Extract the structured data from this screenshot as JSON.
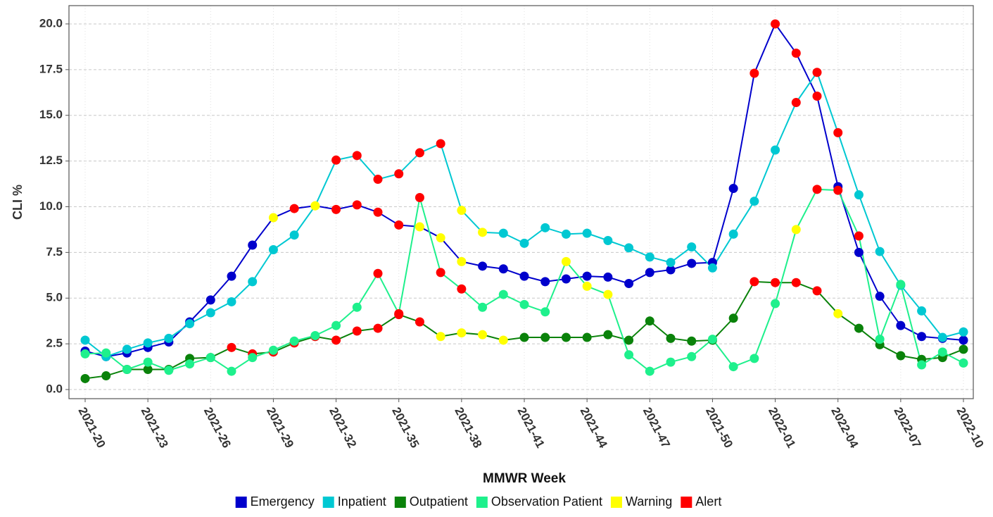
{
  "chart_data": {
    "type": "line",
    "x_label": "MMWR Week",
    "y_label": "CLI %",
    "categories": [
      "2021-20",
      null,
      null,
      "2021-23",
      null,
      null,
      "2021-26",
      null,
      null,
      "2021-29",
      null,
      null,
      "2021-32",
      null,
      null,
      "2021-35",
      null,
      null,
      "2021-38",
      null,
      null,
      "2021-41",
      null,
      null,
      "2021-44",
      null,
      null,
      "2021-47",
      null,
      null,
      "2021-50",
      null,
      null,
      "2022-01",
      null,
      null,
      "2022-04",
      null,
      null,
      "2022-07",
      null,
      null,
      "2022-10"
    ],
    "ylim": [
      -0.5,
      21
    ],
    "yticks": [
      {
        "value": 0,
        "label": "0.0"
      },
      2.5,
      {
        "value": 5,
        "label": "5.0"
      },
      7.5,
      {
        "value": 10,
        "label": "10.0"
      },
      12.5,
      {
        "value": 15,
        "label": "15.0"
      },
      17.5,
      {
        "value": 20,
        "label": "20.0"
      }
    ],
    "grid": true,
    "series": [
      {
        "name": "Emergency",
        "color": "#0000cc",
        "values": [
          2.1,
          1.8,
          2.0,
          2.3,
          2.6,
          3.7,
          4.9,
          6.2,
          7.9,
          9.4,
          9.9,
          10.05,
          9.85,
          10.1,
          9.7,
          9.0,
          8.9,
          8.3,
          7.0,
          6.75,
          6.6,
          6.2,
          5.9,
          6.05,
          6.2,
          6.15,
          5.8,
          6.4,
          6.55,
          6.9,
          6.95,
          11.0,
          17.3,
          20.0,
          18.4,
          16.05,
          11.1,
          7.5,
          5.1,
          3.5,
          2.9,
          2.8,
          2.7
        ],
        "marker_colors": [
          null,
          null,
          null,
          null,
          null,
          null,
          null,
          null,
          null,
          "#ffff00",
          "#ff0000",
          "#ffff00",
          "#ff0000",
          "#ff0000",
          "#ff0000",
          "#ff0000",
          "#ffff00",
          "#ffff00",
          "#ffff00",
          null,
          null,
          null,
          null,
          null,
          null,
          null,
          null,
          null,
          null,
          null,
          null,
          null,
          "#ff0000",
          "#ff0000",
          "#ff0000",
          "#ff0000",
          null,
          null,
          null,
          null,
          null,
          null,
          null
        ]
      },
      {
        "name": "Inpatient",
        "color": "#00c8d2",
        "values": [
          2.7,
          1.8,
          2.2,
          2.55,
          2.8,
          3.6,
          4.2,
          4.8,
          5.9,
          7.65,
          8.45,
          10.05,
          12.55,
          12.8,
          11.5,
          11.8,
          12.95,
          13.45,
          9.8,
          8.6,
          8.55,
          8.0,
          8.85,
          8.5,
          8.55,
          8.15,
          7.75,
          7.25,
          6.95,
          7.8,
          6.65,
          8.5,
          10.3,
          13.1,
          15.7,
          17.35,
          14.05,
          10.65,
          7.55,
          5.7,
          4.3,
          2.85,
          3.15
        ],
        "marker_colors": [
          null,
          null,
          null,
          null,
          null,
          null,
          null,
          null,
          null,
          null,
          null,
          "#ffff00",
          "#ff0000",
          "#ff0000",
          "#ff0000",
          "#ff0000",
          "#ff0000",
          "#ff0000",
          "#ffff00",
          "#ffff00",
          null,
          null,
          null,
          null,
          null,
          null,
          null,
          null,
          null,
          null,
          null,
          null,
          null,
          null,
          "#ff0000",
          "#ff0000",
          "#ff0000",
          null,
          null,
          null,
          null,
          null,
          null
        ]
      },
      {
        "name": "Outpatient",
        "color": "#0a820a",
        "values": [
          0.6,
          0.75,
          1.1,
          1.1,
          1.1,
          1.7,
          1.75,
          2.3,
          1.95,
          2.05,
          2.55,
          2.9,
          2.7,
          3.2,
          3.35,
          4.1,
          3.7,
          2.9,
          3.1,
          3.0,
          2.7,
          2.85,
          2.85,
          2.85,
          2.85,
          3.0,
          2.7,
          3.75,
          2.8,
          2.65,
          2.7,
          3.9,
          5.9,
          5.85,
          5.85,
          5.4,
          4.15,
          3.35,
          2.45,
          1.85,
          1.65,
          1.75,
          2.2
        ],
        "marker_colors": [
          null,
          null,
          null,
          null,
          null,
          null,
          null,
          "#ff0000",
          "#ff0000",
          "#ff0000",
          "#ff0000",
          "#ff0000",
          "#ff0000",
          "#ff0000",
          "#ff0000",
          "#ff0000",
          "#ff0000",
          "#ffff00",
          "#ffff00",
          "#ffff00",
          "#ffff00",
          null,
          null,
          null,
          null,
          null,
          null,
          null,
          null,
          null,
          null,
          null,
          "#ff0000",
          "#ff0000",
          "#ff0000",
          "#ff0000",
          "#ffff00",
          null,
          null,
          null,
          null,
          null,
          null
        ]
      },
      {
        "name": "Observation Patient",
        "color": "#1ef08c",
        "values": [
          1.95,
          2.0,
          1.1,
          1.5,
          1.05,
          1.4,
          1.75,
          1.0,
          1.75,
          2.15,
          2.65,
          2.95,
          3.5,
          4.5,
          6.35,
          4.15,
          10.5,
          6.4,
          5.5,
          4.5,
          5.2,
          4.65,
          4.25,
          7.0,
          5.65,
          5.2,
          1.9,
          1.0,
          1.5,
          1.8,
          2.75,
          1.25,
          1.7,
          4.7,
          8.75,
          10.95,
          10.9,
          8.4,
          2.75,
          5.75,
          1.35,
          2.05,
          1.45
        ],
        "marker_colors": [
          null,
          null,
          null,
          null,
          null,
          null,
          null,
          null,
          null,
          null,
          null,
          null,
          null,
          null,
          "#ff0000",
          "#ff0000",
          "#ff0000",
          "#ff0000",
          "#ff0000",
          null,
          null,
          null,
          null,
          "#ffff00",
          "#ffff00",
          "#ffff00",
          null,
          null,
          null,
          null,
          null,
          null,
          null,
          null,
          "#ffff00",
          "#ff0000",
          "#ff0000",
          "#ff0000",
          null,
          null,
          null,
          null,
          null
        ]
      }
    ],
    "flag_legend": [
      {
        "name": "Warning",
        "color": "#ffff00"
      },
      {
        "name": "Alert",
        "color": "#ff0000"
      }
    ]
  }
}
